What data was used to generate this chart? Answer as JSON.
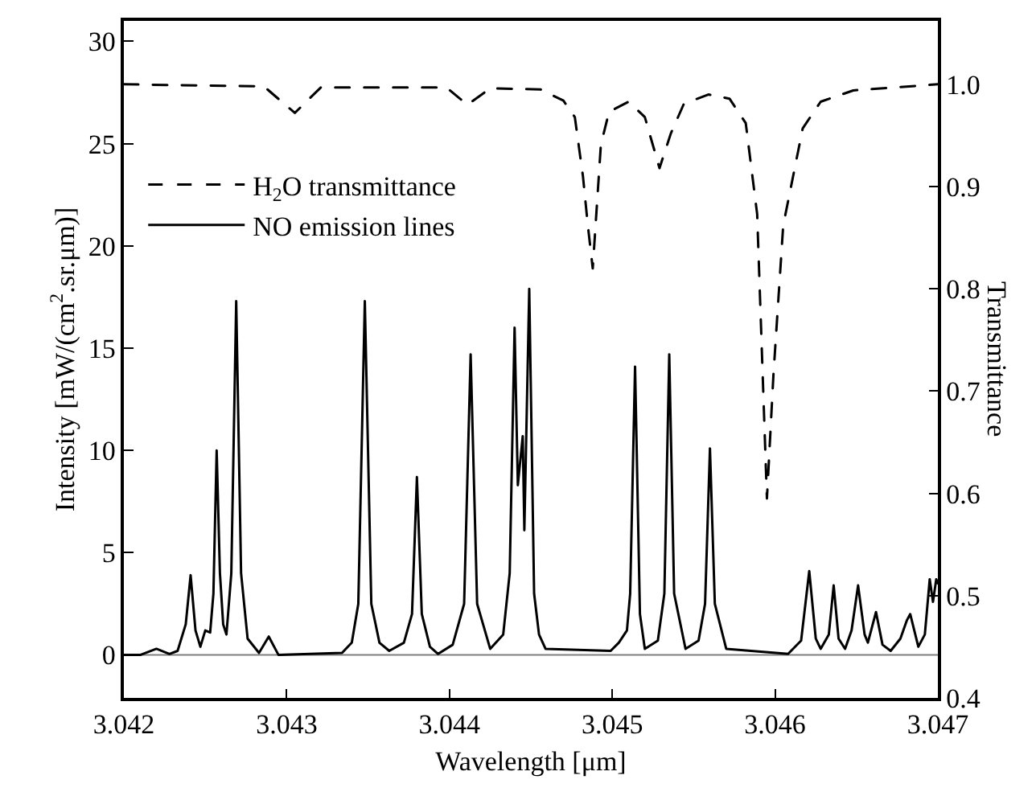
{
  "chart_data": {
    "type": "line",
    "xlabel": "Wavelength [μm]",
    "ylabel": "Intensity [mW/(cm$^{2}$.sr.μm)]",
    "y2label": "Transmittance",
    "xlim": [
      3.042,
      3.047
    ],
    "xticks": [
      {
        "value": 3.042,
        "label": "3.042"
      },
      {
        "value": 3.043,
        "label": "3.043"
      },
      {
        "value": 3.044,
        "label": "3.044"
      },
      {
        "value": 3.045,
        "label": "3.045"
      },
      {
        "value": 3.046,
        "label": "3.046"
      },
      {
        "value": 3.047,
        "label": "3.047"
      }
    ],
    "ylim": [
      -2.1,
      31
    ],
    "yticks": [
      0,
      5,
      10,
      15,
      20,
      25,
      30
    ],
    "y2lim": [
      0.4,
      1.062
    ],
    "y2ticks": [
      0.4,
      0.5,
      0.6,
      0.7,
      0.8,
      0.9,
      {
        "value": 1.0,
        "label": "1.0"
      }
    ],
    "legend": "top left",
    "grid": false,
    "ref_lines": [
      {
        "axis": "y",
        "value": 0,
        "color": "#808080"
      }
    ],
    "series": [
      {
        "name": "H$_{2}$O transmittance",
        "color": "#000000",
        "axis": "y2",
        "line_style": "dashed",
        "x": [
          3.042,
          3.04286,
          3.04305,
          3.04321,
          3.04398,
          3.04411,
          3.04425,
          3.04456,
          3.0447,
          3.04477,
          3.04482,
          3.04485,
          3.04488,
          3.04493,
          3.04498,
          3.0451,
          3.0452,
          3.04529,
          3.04536,
          3.04544,
          3.04559,
          3.04572,
          3.04582,
          3.04589,
          3.04595,
          3.04599,
          3.04605,
          3.04617,
          3.04628,
          3.04648,
          3.047
        ],
        "values": [
          1.0,
          0.998,
          0.972,
          0.997,
          0.997,
          0.98,
          0.996,
          0.995,
          0.984,
          0.968,
          0.91,
          0.862,
          0.82,
          0.941,
          0.973,
          0.983,
          0.968,
          0.918,
          0.952,
          0.981,
          0.99,
          0.986,
          0.962,
          0.873,
          0.595,
          0.716,
          0.862,
          0.957,
          0.983,
          0.994,
          1.0
        ]
      },
      {
        "name": "NO emission lines",
        "color": "#000000",
        "axis": "y",
        "line_style": "solid",
        "x": [
          3.042,
          3.0421,
          3.0422,
          3.04228,
          3.04233,
          3.04238,
          3.04241,
          3.04244,
          3.04247,
          3.0425,
          3.04253,
          3.04255,
          3.04257,
          3.04259,
          3.04261,
          3.04263,
          3.04266,
          3.04269,
          3.04272,
          3.04276,
          3.04283,
          3.04289,
          3.04295,
          3.04334,
          3.0434,
          3.04344,
          3.04348,
          3.04352,
          3.04357,
          3.04363,
          3.04372,
          3.04377,
          3.0438,
          3.04383,
          3.04388,
          3.04393,
          3.04402,
          3.04409,
          3.04413,
          3.04417,
          3.04425,
          3.04433,
          3.04437,
          3.0444,
          3.04442,
          3.04445,
          3.04446,
          3.04449,
          3.04452,
          3.04455,
          3.04459,
          3.04499,
          3.04504,
          3.04509,
          3.04511,
          3.04514,
          3.04517,
          3.0452,
          3.04528,
          3.04532,
          3.04535,
          3.04538,
          3.04545,
          3.04553,
          3.04557,
          3.0456,
          3.04563,
          3.0457,
          3.04608,
          3.04616,
          3.04621,
          3.04625,
          3.04628,
          3.04633,
          3.04636,
          3.04639,
          3.04643,
          3.04647,
          3.04651,
          3.04655,
          3.04657,
          3.04662,
          3.04666,
          3.04671,
          3.04677,
          3.04681,
          3.04683,
          3.04688,
          3.04692,
          3.04695,
          3.04697,
          3.04699,
          3.047
        ],
        "values": [
          0,
          0,
          0.3,
          0.05,
          0.2,
          1.5,
          3.9,
          1.2,
          0.4,
          1.2,
          1.1,
          3,
          10.0,
          4,
          1.5,
          1.0,
          4,
          17.3,
          4,
          0.8,
          0.1,
          0.9,
          0,
          0.1,
          0.6,
          2.5,
          17.3,
          2.5,
          0.6,
          0.2,
          0.6,
          2,
          8.7,
          2,
          0.4,
          0.05,
          0.5,
          2.5,
          14.7,
          2.5,
          0.3,
          1,
          4,
          16.0,
          8.3,
          10.7,
          6.1,
          17.9,
          3,
          1,
          0.3,
          0.2,
          0.6,
          1.2,
          3,
          14.1,
          2,
          0.3,
          0.7,
          3,
          14.7,
          3,
          0.3,
          0.7,
          2.5,
          10.1,
          2.5,
          0.3,
          0.05,
          0.7,
          4.1,
          0.8,
          0.3,
          1,
          3.4,
          0.8,
          0.3,
          1.2,
          3.4,
          1,
          0.6,
          2.1,
          0.5,
          0.2,
          0.8,
          1.7,
          2.0,
          0.4,
          1,
          3.7,
          2.6,
          3.7,
          3.5
        ]
      }
    ]
  }
}
